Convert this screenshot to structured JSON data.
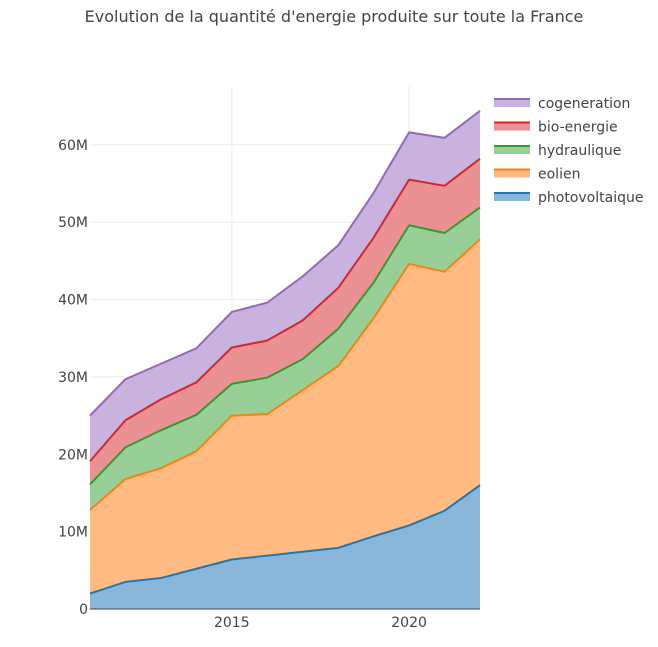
{
  "chart_data": {
    "type": "area",
    "stacked": true,
    "title": "Evolution de la quantité d'energie produite sur toute la France",
    "xlabel": "",
    "ylabel": "",
    "x": [
      2011,
      2012,
      2013,
      2014,
      2015,
      2016,
      2017,
      2018,
      2019,
      2020,
      2021,
      2022
    ],
    "xlim": [
      2011,
      2022
    ],
    "ylim": [
      0,
      67600000
    ],
    "x_ticks": [
      {
        "value": 2015,
        "label": "2015"
      },
      {
        "value": 2020,
        "label": "2020"
      }
    ],
    "y_ticks": [
      {
        "value": 0,
        "label": "0"
      },
      {
        "value": 10000000,
        "label": "10M"
      },
      {
        "value": 20000000,
        "label": "20M"
      },
      {
        "value": 30000000,
        "label": "30M"
      },
      {
        "value": 40000000,
        "label": "40M"
      },
      {
        "value": 50000000,
        "label": "50M"
      },
      {
        "value": 60000000,
        "label": "60M"
      }
    ],
    "grid": true,
    "legend_position": "top-right",
    "series": [
      {
        "name": "photovoltaique",
        "color": "#1f77b4",
        "fill": "#8ab6d9",
        "values": [
          2000000,
          3500000,
          4000000,
          5200000,
          6400000,
          6900000,
          7400000,
          7900000,
          9400000,
          10800000,
          12700000,
          16000000
        ]
      },
      {
        "name": "eolien",
        "color": "#ff7f0e",
        "fill": "#ffbb82",
        "values": [
          10800000,
          13300000,
          14200000,
          15200000,
          18600000,
          18300000,
          20900000,
          23500000,
          28200000,
          33800000,
          30900000,
          31800000
        ]
      },
      {
        "name": "hydraulique",
        "color": "#2ca02c",
        "fill": "#97cf96",
        "values": [
          3300000,
          4100000,
          4900000,
          4700000,
          4100000,
          4700000,
          4000000,
          4800000,
          4600000,
          5000000,
          5000000,
          4100000
        ]
      },
      {
        "name": "bio-energie",
        "color": "#d62728",
        "fill": "#ea9293",
        "values": [
          3000000,
          3500000,
          4000000,
          4200000,
          4700000,
          4800000,
          5000000,
          5300000,
          5800000,
          5900000,
          6100000,
          6300000
        ]
      },
      {
        "name": "cogeneration",
        "color": "#9467bd",
        "fill": "#c9b3de",
        "values": [
          5900000,
          5300000,
          4600000,
          4400000,
          4600000,
          4900000,
          5700000,
          5500000,
          5800000,
          6100000,
          6200000,
          6200000
        ]
      }
    ]
  }
}
